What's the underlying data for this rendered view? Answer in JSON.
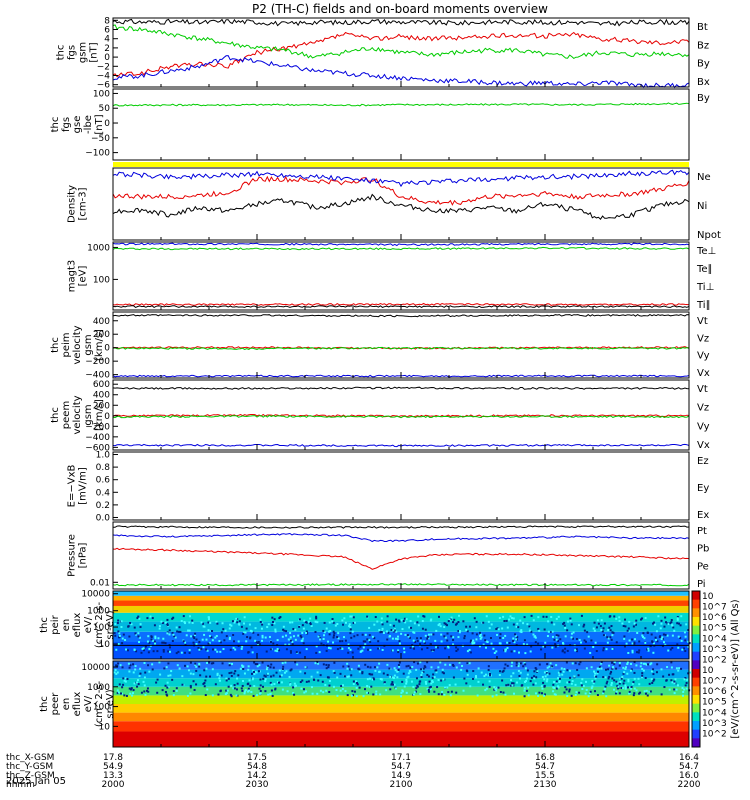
{
  "figure": {
    "title": "P2 (TH-C) fields and on-board moments overview",
    "date": "2025 Jan 05"
  },
  "colors": {
    "black": "#000000",
    "red": "#e60000",
    "green": "#00cc00",
    "blue": "#0000dd",
    "yellow": "#ffff00"
  },
  "chart_data": [
    {
      "type": "line",
      "ylabel": [
        "thc",
        "fgs",
        "gsm",
        "[nT]"
      ],
      "ylim": [
        -6.5,
        8.5
      ],
      "yticks": [
        {
          "v": 8,
          "t": "8"
        },
        {
          "v": 6,
          "t": "6"
        },
        {
          "v": 4,
          "t": "4"
        },
        {
          "v": 2,
          "t": "2"
        },
        {
          "v": 0,
          "t": "0"
        },
        {
          "v": -2,
          "t": "−2"
        },
        {
          "v": -4,
          "t": "−4"
        },
        {
          "v": -6,
          "t": "−6"
        }
      ],
      "series": [
        {
          "name": "Bt",
          "color": "black",
          "x": [
            0,
            0.05,
            0.1,
            0.15,
            0.2,
            0.25,
            0.3,
            0.35,
            0.4,
            0.45,
            0.5,
            0.55,
            0.6,
            0.65,
            0.7,
            0.75,
            0.8,
            0.85,
            0.9,
            0.95,
            1
          ],
          "y": [
            7.8,
            7.6,
            7.7,
            7.5,
            7.8,
            7.6,
            7.2,
            7.6,
            7.5,
            7.8,
            7.6,
            7.5,
            7.4,
            7.6,
            7.7,
            7.5,
            7.6,
            7.2,
            7.5,
            7.7,
            7.4
          ]
        },
        {
          "name": "Bz",
          "color": "red",
          "x": [
            0,
            0.05,
            0.1,
            0.15,
            0.2,
            0.25,
            0.3,
            0.35,
            0.4,
            0.45,
            0.5,
            0.55,
            0.6,
            0.65,
            0.7,
            0.75,
            0.8,
            0.85,
            0.9,
            0.95,
            1
          ],
          "y": [
            -4,
            -3.5,
            -2,
            -1.5,
            -2,
            1,
            2,
            3,
            5,
            4,
            4.5,
            4,
            4.2,
            4.5,
            4.8,
            4.6,
            5,
            4,
            3.5,
            3.2,
            3.5
          ]
        },
        {
          "name": "By",
          "color": "green",
          "x": [
            0,
            0.05,
            0.1,
            0.15,
            0.2,
            0.25,
            0.3,
            0.35,
            0.4,
            0.45,
            0.5,
            0.55,
            0.6,
            0.65,
            0.7,
            0.75,
            0.8,
            0.85,
            0.9,
            0.95,
            1
          ],
          "y": [
            6.5,
            6,
            5,
            4,
            3,
            2,
            1.5,
            0,
            1,
            2,
            1,
            0.5,
            1,
            1.5,
            1.5,
            0.5,
            0,
            1,
            0.5,
            0.8,
            0.5
          ]
        },
        {
          "name": "Bx",
          "color": "blue",
          "x": [
            0,
            0.05,
            0.1,
            0.15,
            0.2,
            0.25,
            0.3,
            0.35,
            0.4,
            0.45,
            0.5,
            0.55,
            0.6,
            0.65,
            0.7,
            0.75,
            0.8,
            0.85,
            0.9,
            0.95,
            1
          ],
          "y": [
            -4.5,
            -4,
            -3,
            -2,
            0,
            -1,
            -2,
            -3,
            -3.5,
            -4,
            -4.5,
            -5,
            -5.2,
            -5.5,
            -5.8,
            -5.6,
            -6,
            -5.5,
            -6,
            -6.2,
            -6
          ]
        }
      ]
    },
    {
      "type": "line",
      "ylabel": [
        "thc",
        "fgs",
        "gse",
        "-lbe",
        "[nT]"
      ],
      "ylim": [
        -125,
        115
      ],
      "yticks": [
        {
          "v": 100,
          "t": "100"
        },
        {
          "v": 50,
          "t": "50"
        },
        {
          "v": 0,
          "t": "0"
        },
        {
          "v": -50,
          "t": "−50"
        },
        {
          "v": -100,
          "t": "−100"
        }
      ],
      "series": [
        {
          "name": "By",
          "color": "green",
          "x": [
            0,
            0.1,
            0.2,
            0.3,
            0.4,
            0.5,
            0.6,
            0.7,
            0.8,
            0.9,
            1
          ],
          "y": [
            60,
            61,
            61,
            62,
            60,
            62,
            62,
            63,
            62,
            64,
            66
          ]
        }
      ]
    },
    {
      "type": "line",
      "ylabel": [
        "Density",
        "[cm-3]"
      ],
      "ylim": [
        0,
        1
      ],
      "yticks": [],
      "series": [
        {
          "name": "Ne",
          "color": "red",
          "x": [
            0,
            0.05,
            0.1,
            0.15,
            0.2,
            0.25,
            0.3,
            0.35,
            0.4,
            0.45,
            0.5,
            0.55,
            0.6,
            0.65,
            0.7,
            0.75,
            0.8,
            0.85,
            0.9,
            0.95,
            1
          ],
          "y": [
            0.62,
            0.6,
            0.6,
            0.62,
            0.66,
            0.85,
            0.84,
            0.82,
            0.8,
            0.85,
            0.6,
            0.52,
            0.52,
            0.6,
            0.62,
            0.65,
            0.6,
            0.62,
            0.64,
            0.7,
            0.8
          ]
        },
        {
          "name": "Ni",
          "color": "black",
          "x": [
            0,
            0.05,
            0.1,
            0.15,
            0.2,
            0.25,
            0.3,
            0.35,
            0.4,
            0.45,
            0.5,
            0.55,
            0.6,
            0.65,
            0.7,
            0.75,
            0.8,
            0.85,
            0.9,
            0.95,
            1
          ],
          "y": [
            0.4,
            0.42,
            0.35,
            0.45,
            0.4,
            0.5,
            0.55,
            0.45,
            0.5,
            0.6,
            0.48,
            0.42,
            0.4,
            0.45,
            0.4,
            0.5,
            0.42,
            0.3,
            0.35,
            0.48,
            0.55
          ]
        },
        {
          "name": "Npot",
          "color": "blue",
          "x": [
            0,
            0.05,
            0.1,
            0.15,
            0.2,
            0.25,
            0.3,
            0.35,
            0.4,
            0.45,
            0.5,
            0.55,
            0.6,
            0.65,
            0.7,
            0.75,
            0.8,
            0.85,
            0.9,
            0.95,
            1
          ],
          "y": [
            0.92,
            0.9,
            0.88,
            0.88,
            0.9,
            0.92,
            0.9,
            0.88,
            0.85,
            0.82,
            0.78,
            0.8,
            0.82,
            0.84,
            0.86,
            0.88,
            0.88,
            0.9,
            0.92,
            0.93,
            0.94
          ]
        }
      ]
    },
    {
      "type": "line",
      "ylabel": [
        "magt3",
        "[eV]"
      ],
      "ylim": [
        0,
        1
      ],
      "yticks": [
        {
          "v": 0.92,
          "t": "1000"
        },
        {
          "v": 0.45,
          "t": "100"
        }
      ],
      "series": [
        {
          "name": "Te⊥",
          "color": "red",
          "x": [
            0,
            0.25,
            0.5,
            0.75,
            1
          ],
          "y": [
            0.08,
            0.08,
            0.085,
            0.08,
            0.08
          ]
        },
        {
          "name": "Te∥",
          "color": "black",
          "x": [
            0,
            0.25,
            0.5,
            0.75,
            1
          ],
          "y": [
            0.05,
            0.05,
            0.05,
            0.05,
            0.05
          ]
        },
        {
          "name": "Ti⊥",
          "color": "blue",
          "x": [
            0,
            0.25,
            0.5,
            0.75,
            1
          ],
          "y": [
            0.97,
            0.97,
            0.96,
            0.97,
            0.97
          ]
        },
        {
          "name": "Ti∥",
          "color": "green",
          "x": [
            0,
            0.25,
            0.5,
            0.75,
            1
          ],
          "y": [
            0.9,
            0.9,
            0.9,
            0.91,
            0.9
          ]
        }
      ]
    },
    {
      "type": "line",
      "ylabel": [
        "thc",
        "peim",
        "velocity",
        "gsm",
        "[km/s]"
      ],
      "ylim": [
        -450,
        530
      ],
      "yticks": [
        {
          "v": 400,
          "t": "400"
        },
        {
          "v": 200,
          "t": "200"
        },
        {
          "v": 0,
          "t": "0"
        },
        {
          "v": -200,
          "t": "−200"
        },
        {
          "v": -400,
          "t": "−400"
        }
      ],
      "series": [
        {
          "name": "Vt",
          "color": "black",
          "x": [
            0,
            0.25,
            0.5,
            0.75,
            1
          ],
          "y": [
            480,
            480,
            470,
            480,
            480
          ]
        },
        {
          "name": "Vz",
          "color": "red",
          "x": [
            0,
            0.25,
            0.5,
            0.75,
            1
          ],
          "y": [
            0,
            5,
            -10,
            0,
            5
          ]
        },
        {
          "name": "Vy",
          "color": "green",
          "x": [
            0,
            0.25,
            0.5,
            0.75,
            1
          ],
          "y": [
            -10,
            -15,
            -5,
            -10,
            -10
          ]
        },
        {
          "name": "Vx",
          "color": "blue",
          "x": [
            0,
            0.25,
            0.5,
            0.75,
            1
          ],
          "y": [
            -420,
            -420,
            -420,
            -420,
            -420
          ]
        }
      ]
    },
    {
      "type": "line",
      "ylabel": [
        "thc",
        "peem",
        "velocity",
        "gsm",
        "[km/s]"
      ],
      "ylim": [
        -650,
        680
      ],
      "yticks": [
        {
          "v": 600,
          "t": "600"
        },
        {
          "v": 400,
          "t": "400"
        },
        {
          "v": 200,
          "t": "200"
        },
        {
          "v": 0,
          "t": "0"
        },
        {
          "v": -200,
          "t": "−200"
        },
        {
          "v": -400,
          "t": "−400"
        },
        {
          "v": -600,
          "t": "−600"
        }
      ],
      "series": [
        {
          "name": "Vt",
          "color": "black",
          "x": [
            0,
            0.25,
            0.5,
            0.75,
            1
          ],
          "y": [
            520,
            520,
            530,
            520,
            520
          ]
        },
        {
          "name": "Vz",
          "color": "red",
          "x": [
            0,
            0.25,
            0.5,
            0.75,
            1
          ],
          "y": [
            0,
            10,
            -5,
            5,
            0
          ]
        },
        {
          "name": "Vy",
          "color": "green",
          "x": [
            0,
            0.25,
            0.5,
            0.75,
            1
          ],
          "y": [
            -20,
            -10,
            -20,
            -15,
            -20
          ]
        },
        {
          "name": "Vx",
          "color": "blue",
          "x": [
            0,
            0.25,
            0.5,
            0.75,
            1
          ],
          "y": [
            -560,
            -560,
            -570,
            -560,
            -560
          ]
        }
      ]
    },
    {
      "type": "line",
      "ylabel": [
        "E=−VxB",
        "[mV/m]"
      ],
      "ylim": [
        -0.04,
        1.04
      ],
      "yticks": [
        {
          "v": 1.0,
          "t": "1.0"
        },
        {
          "v": 0.8,
          "t": "0.8"
        },
        {
          "v": 0.6,
          "t": "0.6"
        },
        {
          "v": 0.4,
          "t": "0.4"
        },
        {
          "v": 0.2,
          "t": "0.2"
        },
        {
          "v": 0.0,
          "t": "0.0"
        }
      ],
      "series": [
        {
          "name": "Ez",
          "color": "red",
          "x": [],
          "y": []
        },
        {
          "name": "Ey",
          "color": "green",
          "x": [],
          "y": []
        },
        {
          "name": "Ex",
          "color": "blue",
          "x": [],
          "y": []
        }
      ]
    },
    {
      "type": "line",
      "ylabel": [
        "Pressure",
        "[nPa]"
      ],
      "ylim": [
        0,
        1
      ],
      "yticks": [
        {
          "v": 0.1,
          "t": "0.01"
        }
      ],
      "series": [
        {
          "name": "Pt",
          "color": "black",
          "x": [
            0,
            0.25,
            0.5,
            0.75,
            1
          ],
          "y": [
            0.93,
            0.92,
            0.92,
            0.93,
            0.93
          ]
        },
        {
          "name": "Pb",
          "color": "red",
          "x": [
            0,
            0.1,
            0.2,
            0.3,
            0.4,
            0.45,
            0.5,
            0.55,
            0.6,
            0.7,
            0.8,
            0.9,
            1
          ],
          "y": [
            0.6,
            0.58,
            0.55,
            0.52,
            0.48,
            0.3,
            0.45,
            0.5,
            0.52,
            0.52,
            0.5,
            0.48,
            0.45
          ]
        },
        {
          "name": "Pe",
          "color": "green",
          "x": [
            0,
            0.25,
            0.5,
            0.75,
            1
          ],
          "y": [
            0.06,
            0.06,
            0.07,
            0.06,
            0.06
          ]
        },
        {
          "name": "Pi",
          "color": "blue",
          "x": [
            0,
            0.1,
            0.2,
            0.3,
            0.4,
            0.45,
            0.5,
            0.55,
            0.6,
            0.7,
            0.8,
            0.9,
            1
          ],
          "y": [
            0.8,
            0.78,
            0.8,
            0.82,
            0.8,
            0.72,
            0.72,
            0.74,
            0.75,
            0.76,
            0.78,
            0.76,
            0.76
          ]
        }
      ]
    },
    {
      "type": "heatmap",
      "ylabel": [
        "thc",
        "peir",
        "en",
        "eflux",
        "eV/",
        "(cm^2-s-",
        "sr-eV)"
      ],
      "yticks": [
        {
          "v": 0.96,
          "t": "10000"
        },
        {
          "v": 0.71,
          "t": "1000"
        },
        {
          "v": 0.47,
          "t": "100"
        },
        {
          "v": 0.22,
          "t": "10"
        }
      ],
      "bands": [
        {
          "from": 0.0,
          "to": 0.25,
          "color": "#0050ff"
        },
        {
          "from": 0.25,
          "to": 0.4,
          "color": "#0a6fff"
        },
        {
          "from": 0.4,
          "to": 0.55,
          "color": "#00b8e0"
        },
        {
          "from": 0.55,
          "to": 0.68,
          "color": "#00d8d0"
        },
        {
          "from": 0.68,
          "to": 0.78,
          "color": "#f0d000"
        },
        {
          "from": 0.78,
          "to": 0.86,
          "color": "#ff4400"
        },
        {
          "from": 0.86,
          "to": 0.93,
          "color": "#ffb000"
        },
        {
          "from": 0.93,
          "to": 1.0,
          "color": "#20c0ff"
        }
      ]
    },
    {
      "type": "heatmap",
      "ylabel": [
        "thc",
        "peer",
        "en",
        "eflux",
        "eV/",
        "(cm^2-s-",
        "sr-eV)"
      ],
      "yticks": [
        {
          "v": 0.93,
          "t": "10000"
        },
        {
          "v": 0.7,
          "t": "1000"
        },
        {
          "v": 0.47,
          "t": "100"
        },
        {
          "v": 0.24,
          "t": "10"
        }
      ],
      "bands": [
        {
          "from": 0.0,
          "to": 0.18,
          "color": "#dd0000"
        },
        {
          "from": 0.18,
          "to": 0.3,
          "color": "#ff3300"
        },
        {
          "from": 0.3,
          "to": 0.4,
          "color": "#ff8800"
        },
        {
          "from": 0.4,
          "to": 0.5,
          "color": "#ffcc00"
        },
        {
          "from": 0.5,
          "to": 0.6,
          "color": "#bff000"
        },
        {
          "from": 0.6,
          "to": 0.7,
          "color": "#40e080"
        },
        {
          "from": 0.7,
          "to": 0.8,
          "color": "#00d0d0"
        },
        {
          "from": 0.8,
          "to": 0.9,
          "color": "#00a8f0"
        },
        {
          "from": 0.9,
          "to": 1.0,
          "color": "#2070ff"
        }
      ]
    }
  ],
  "colorbar": {
    "unit": "[eV/(cm^2-s-sr-eV)] (All Qs)",
    "ticks": [
      "10",
      "10^7",
      "10^6",
      "10^5",
      "10^4",
      "10^3",
      "10^2",
      "10",
      "10^7",
      "10^6",
      "10^5",
      "10^4",
      "10^3",
      "10^2"
    ]
  },
  "xaxis": {
    "row_labels": [
      "thc_X-GSM",
      "thc_Y-GSM",
      "thc_Z-GSM",
      "hhmm"
    ],
    "columns": [
      {
        "x": 0.0,
        "vals": [
          "17.8",
          "54.9",
          "13.3",
          "2000"
        ]
      },
      {
        "x": 0.25,
        "vals": [
          "17.5",
          "54.8",
          "14.2",
          "2030"
        ]
      },
      {
        "x": 0.5,
        "vals": [
          "17.1",
          "54.7",
          "14.9",
          "2100"
        ]
      },
      {
        "x": 0.75,
        "vals": [
          "16.8",
          "54.7",
          "15.5",
          "2130"
        ]
      },
      {
        "x": 1.0,
        "vals": [
          "16.4",
          "54.7",
          "16.0",
          "2200"
        ]
      }
    ]
  }
}
